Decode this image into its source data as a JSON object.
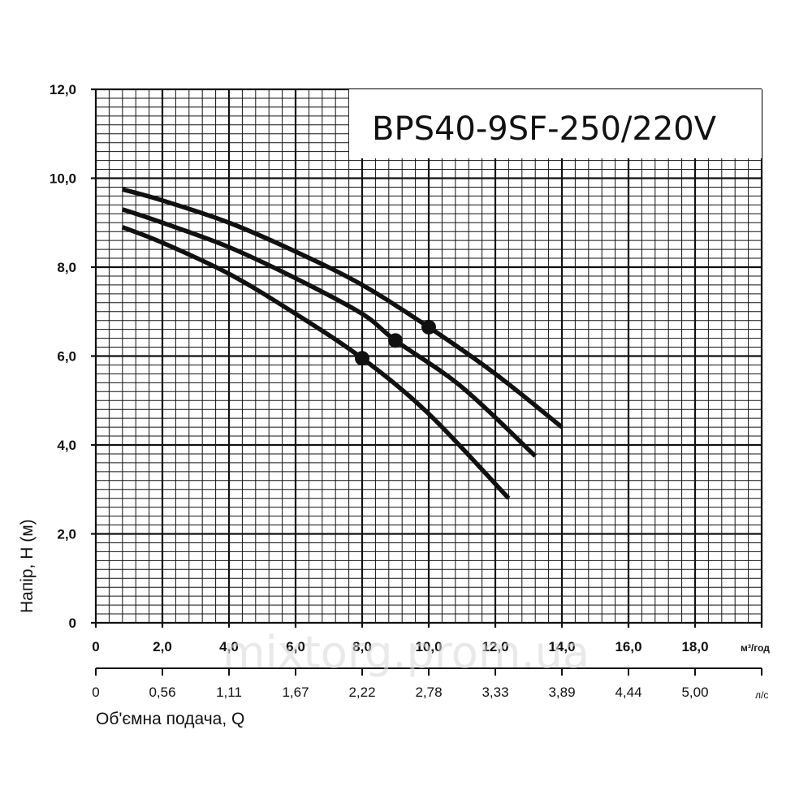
{
  "chart_data": {
    "type": "line",
    "title": "BPS40-9SF-250/220V",
    "ylabel": "Напір, Н (м)",
    "xlabel": "Об'ємна  подача, Q",
    "x_unit": "м³/год",
    "x2_unit": "л/с",
    "xlim": [
      0,
      20
    ],
    "ylim": [
      0,
      12
    ],
    "x_ticks": [
      "0",
      "2,0",
      "4,0",
      "6,0",
      "8,0",
      "10,0",
      "12,0",
      "14,0",
      "16,0",
      "18,0"
    ],
    "x2_ticks": [
      "0",
      "0,56",
      "1,11",
      "1,67",
      "2,22",
      "2,78",
      "3,33",
      "3,89",
      "4,44",
      "5,00"
    ],
    "y_ticks": [
      "0",
      "2,0",
      "4,0",
      "6,0",
      "8,0",
      "10,0",
      "12,0"
    ],
    "grid": true,
    "series": [
      {
        "x": [
          0.8,
          2,
          4,
          6,
          8,
          10,
          12,
          14
        ],
        "y": [
          9.75,
          9.5,
          9.0,
          8.35,
          7.6,
          6.65,
          5.6,
          4.4
        ],
        "marker": {
          "x": 10.0,
          "y": 6.65
        }
      },
      {
        "x": [
          0.8,
          2,
          4,
          6,
          8,
          9,
          11,
          13.2
        ],
        "y": [
          9.3,
          9.0,
          8.45,
          7.75,
          6.95,
          6.35,
          5.3,
          3.75
        ],
        "marker": {
          "x": 9.0,
          "y": 6.35
        }
      },
      {
        "x": [
          0.8,
          2,
          4,
          6,
          8,
          10,
          12.4
        ],
        "y": [
          8.9,
          8.55,
          7.85,
          6.95,
          5.95,
          4.7,
          2.8
        ],
        "marker": {
          "x": 8.0,
          "y": 5.95
        }
      }
    ],
    "colors": {
      "line": "#111111",
      "grid": "#111111",
      "background": "#ffffff"
    }
  },
  "watermark": "mixtorg.prom.ua"
}
